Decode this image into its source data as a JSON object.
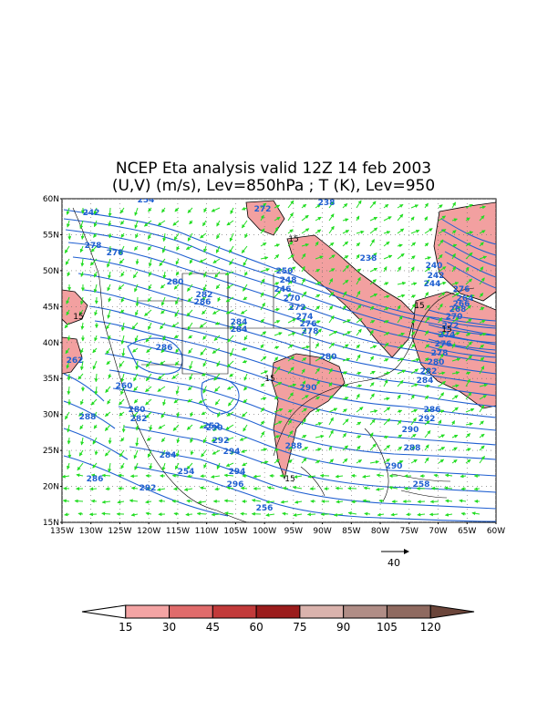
{
  "title": {
    "line1": "NCEP Eta analysis valid 12Z 14 feb 2003",
    "line2": "(U,V) (m/s), Lev=850hPa ; T (K), Lev=950"
  },
  "map": {
    "lat_labels": [
      "60N",
      "55N",
      "50N",
      "45N",
      "40N",
      "35N",
      "30N",
      "25N",
      "20N",
      "15N"
    ],
    "lon_labels": [
      "135W",
      "130W",
      "125W",
      "120W",
      "115W",
      "110W",
      "105W",
      "100W",
      "95W",
      "90W",
      "85W",
      "80W",
      "75W",
      "70W",
      "65W",
      "60W"
    ],
    "lat_range": [
      15,
      60
    ],
    "lon_range": [
      -135,
      -60
    ],
    "vector_color": "#22dd22",
    "contour_color": "#1f5fd1",
    "isotach_15_label": "15",
    "temperature_labels": [
      "254",
      "238",
      "272",
      "242",
      "238",
      "240",
      "242",
      "244",
      "276",
      "278",
      "276",
      "280",
      "282",
      "286",
      "284",
      "284",
      "286",
      "270",
      "272",
      "274",
      "276",
      "278",
      "280",
      "290",
      "288",
      "280",
      "282",
      "284",
      "286",
      "292",
      "294",
      "288",
      "290",
      "292",
      "296",
      "294",
      "290",
      "288",
      "290",
      "292",
      "286",
      "284",
      "282",
      "280",
      "278",
      "276",
      "274",
      "272",
      "270",
      "268",
      "266",
      "264",
      "262",
      "260",
      "258",
      "256",
      "254",
      "252",
      "250",
      "248",
      "246"
    ]
  },
  "reference_vector": {
    "label": "40"
  },
  "colorbar": {
    "labels": [
      "15",
      "30",
      "45",
      "60",
      "75",
      "90",
      "105",
      "120"
    ],
    "colors": [
      "#ffffff",
      "#f4a4a4",
      "#e06b6b",
      "#c23a3a",
      "#9b1c1c",
      "#dab3ad",
      "#b08d86",
      "#8f6a60",
      "#6b453a"
    ]
  }
}
